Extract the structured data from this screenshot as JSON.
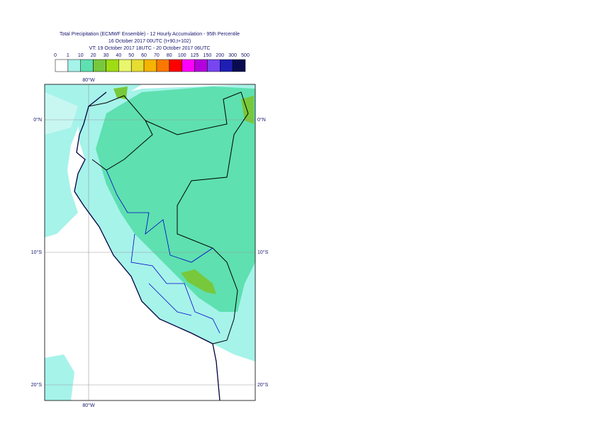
{
  "header": {
    "title_lines": [
      "Total Precipitation (ECMWF Ensemble) - 12 Hourly Accumulation - 95th Percentile",
      "16 October 2017 00UTC (t+90,t+102)",
      "VT: 19 October 2017 18UTC - 20 October 2017 06UTC"
    ]
  },
  "legend": {
    "labels": [
      "0",
      "1",
      "10",
      "20",
      "30",
      "40",
      "50",
      "60",
      "70",
      "80",
      "100",
      "125",
      "150",
      "200",
      "300",
      "500"
    ],
    "colors": [
      "#ffffff",
      "#a6f3ea",
      "#5ee0b0",
      "#78c83c",
      "#9edc14",
      "#e8f66e",
      "#e6dc32",
      "#f5b400",
      "#fa7800",
      "#ff0000",
      "#ff00ff",
      "#b400dc",
      "#7846f0",
      "#1e1eb4",
      "#0a0a50"
    ]
  },
  "map": {
    "lon_labels": [
      "80°W"
    ],
    "lat_labels": [
      "0°N",
      "10°S",
      "20°S"
    ]
  }
}
